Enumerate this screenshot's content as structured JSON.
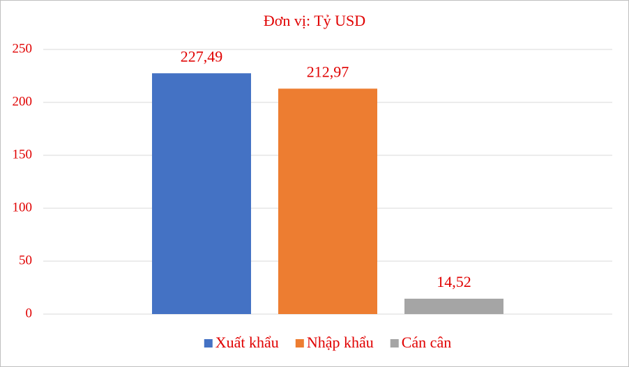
{
  "chart_data": {
    "type": "bar",
    "title": "Đơn vị: Tỷ USD",
    "categories": [
      null
    ],
    "series": [
      {
        "name": "Xuất khẩu",
        "color": "#4472c4",
        "values": [
          227.49
        ],
        "value_labels": [
          "227,49"
        ]
      },
      {
        "name": "Nhập khẩu",
        "color": "#ed7d31",
        "values": [
          212.97
        ],
        "value_labels": [
          "212,97"
        ]
      },
      {
        "name": "Cán cân",
        "color": "#a5a5a5",
        "values": [
          14.52
        ],
        "value_labels": [
          "14,52"
        ]
      }
    ],
    "ylim": [
      0,
      250
    ],
    "yticks": [
      0,
      50,
      100,
      150,
      200,
      250
    ],
    "grid": true,
    "legend": "bottom",
    "text_color": "#e00000"
  }
}
